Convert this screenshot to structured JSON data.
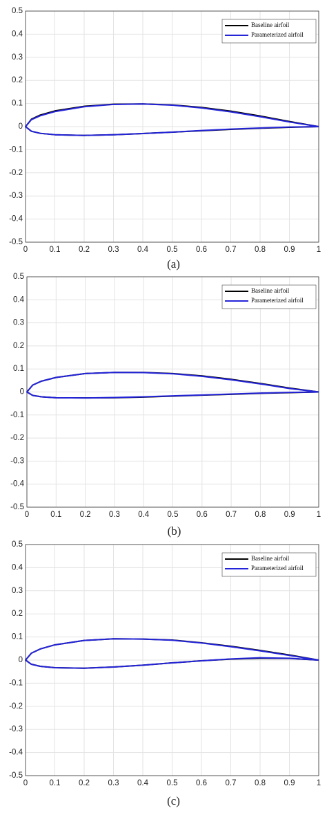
{
  "chart_data": [
    {
      "type": "line",
      "caption": "(a)",
      "xlim": [
        0,
        1
      ],
      "ylim": [
        -0.5,
        0.5
      ],
      "xticks": [
        0,
        0.1,
        0.2,
        0.3,
        0.4,
        0.5,
        0.6,
        0.7,
        0.8,
        0.9,
        1
      ],
      "yticks": [
        -0.5,
        -0.4,
        -0.3,
        -0.2,
        -0.1,
        0,
        0.1,
        0.2,
        0.3,
        0.4,
        0.5
      ],
      "grid": true,
      "legend": "upper right",
      "series": [
        {
          "name": "Baseline airfoil",
          "color": "#000000",
          "x": [
            1,
            0.9,
            0.8,
            0.7,
            0.6,
            0.5,
            0.4,
            0.3,
            0.2,
            0.1,
            0.05,
            0.02,
            0,
            0.02,
            0.05,
            0.1,
            0.2,
            0.3,
            0.4,
            0.5,
            0.6,
            0.7,
            0.8,
            0.9,
            1
          ],
          "values": [
            0,
            0.022,
            0.046,
            0.067,
            0.083,
            0.094,
            0.098,
            0.097,
            0.088,
            0.068,
            0.05,
            0.032,
            0,
            -0.02,
            -0.029,
            -0.035,
            -0.038,
            -0.035,
            -0.03,
            -0.024,
            -0.018,
            -0.012,
            -0.007,
            -0.003,
            0
          ]
        },
        {
          "name": "Parameterized airfoil",
          "color": "#2424d8",
          "x": [
            1,
            0.9,
            0.8,
            0.7,
            0.6,
            0.5,
            0.4,
            0.3,
            0.2,
            0.1,
            0.05,
            0.02,
            0,
            0.02,
            0.05,
            0.1,
            0.2,
            0.3,
            0.4,
            0.5,
            0.6,
            0.7,
            0.8,
            0.9,
            1
          ],
          "values": [
            0,
            0.02,
            0.043,
            0.064,
            0.081,
            0.093,
            0.098,
            0.096,
            0.086,
            0.065,
            0.047,
            0.03,
            0,
            -0.02,
            -0.029,
            -0.035,
            -0.038,
            -0.035,
            -0.03,
            -0.024,
            -0.017,
            -0.011,
            -0.006,
            -0.002,
            0
          ]
        }
      ]
    },
    {
      "type": "line",
      "caption": "(b)",
      "xlim": [
        0,
        1
      ],
      "ylim": [
        -0.5,
        0.5
      ],
      "xticks": [
        0,
        0.1,
        0.2,
        0.3,
        0.4,
        0.5,
        0.6,
        0.7,
        0.8,
        0.9,
        1
      ],
      "yticks": [
        -0.5,
        -0.4,
        -0.3,
        -0.2,
        -0.1,
        0,
        0.1,
        0.2,
        0.3,
        0.4,
        0.5
      ],
      "grid": true,
      "legend": "upper right",
      "series": [
        {
          "name": "Baseline airfoil",
          "color": "#000000",
          "x": [
            1,
            0.9,
            0.8,
            0.7,
            0.6,
            0.5,
            0.4,
            0.3,
            0.2,
            0.1,
            0.05,
            0.02,
            0,
            0.02,
            0.05,
            0.1,
            0.2,
            0.3,
            0.4,
            0.5,
            0.6,
            0.7,
            0.8,
            0.9,
            1
          ],
          "values": [
            0,
            0.017,
            0.037,
            0.055,
            0.07,
            0.08,
            0.085,
            0.085,
            0.08,
            0.063,
            0.047,
            0.03,
            0,
            -0.015,
            -0.021,
            -0.025,
            -0.026,
            -0.025,
            -0.022,
            -0.018,
            -0.014,
            -0.01,
            -0.006,
            -0.003,
            0
          ]
        },
        {
          "name": "Parameterized airfoil",
          "color": "#2424d8",
          "x": [
            1,
            0.9,
            0.8,
            0.7,
            0.6,
            0.5,
            0.4,
            0.3,
            0.2,
            0.1,
            0.05,
            0.02,
            0,
            0.02,
            0.05,
            0.1,
            0.2,
            0.3,
            0.4,
            0.5,
            0.6,
            0.7,
            0.8,
            0.9,
            1
          ],
          "values": [
            0,
            0.015,
            0.035,
            0.053,
            0.068,
            0.079,
            0.084,
            0.085,
            0.08,
            0.063,
            0.047,
            0.03,
            0,
            -0.015,
            -0.021,
            -0.025,
            -0.026,
            -0.024,
            -0.021,
            -0.017,
            -0.013,
            -0.009,
            -0.005,
            -0.002,
            0
          ]
        }
      ]
    },
    {
      "type": "line",
      "caption": "(c)",
      "xlim": [
        0,
        1
      ],
      "ylim": [
        -0.5,
        0.5
      ],
      "xticks": [
        0,
        0.1,
        0.2,
        0.3,
        0.4,
        0.5,
        0.6,
        0.7,
        0.8,
        0.9,
        1
      ],
      "yticks": [
        -0.5,
        -0.4,
        -0.3,
        -0.2,
        -0.1,
        0,
        0.1,
        0.2,
        0.3,
        0.4,
        0.5
      ],
      "grid": true,
      "legend": "upper right",
      "series": [
        {
          "name": "Baseline airfoil",
          "color": "#000000",
          "x": [
            1,
            0.9,
            0.8,
            0.7,
            0.6,
            0.5,
            0.4,
            0.3,
            0.2,
            0.1,
            0.05,
            0.02,
            0,
            0.02,
            0.05,
            0.1,
            0.2,
            0.3,
            0.4,
            0.5,
            0.6,
            0.7,
            0.8,
            0.9,
            1
          ],
          "values": [
            0,
            0.022,
            0.042,
            0.06,
            0.075,
            0.087,
            0.091,
            0.092,
            0.085,
            0.066,
            0.048,
            0.03,
            0,
            -0.018,
            -0.027,
            -0.033,
            -0.035,
            -0.03,
            -0.022,
            -0.012,
            -0.003,
            0.004,
            0.008,
            0.007,
            0
          ]
        },
        {
          "name": "Parameterized airfoil",
          "color": "#2424d8",
          "x": [
            1,
            0.9,
            0.8,
            0.7,
            0.6,
            0.5,
            0.4,
            0.3,
            0.2,
            0.1,
            0.05,
            0.02,
            0,
            0.02,
            0.05,
            0.1,
            0.2,
            0.3,
            0.4,
            0.5,
            0.6,
            0.7,
            0.8,
            0.9,
            1
          ],
          "values": [
            0,
            0.02,
            0.04,
            0.058,
            0.074,
            0.086,
            0.091,
            0.092,
            0.085,
            0.066,
            0.048,
            0.03,
            0,
            -0.018,
            -0.027,
            -0.033,
            -0.035,
            -0.03,
            -0.022,
            -0.012,
            -0.003,
            0.005,
            0.01,
            0.008,
            0
          ]
        }
      ]
    }
  ]
}
